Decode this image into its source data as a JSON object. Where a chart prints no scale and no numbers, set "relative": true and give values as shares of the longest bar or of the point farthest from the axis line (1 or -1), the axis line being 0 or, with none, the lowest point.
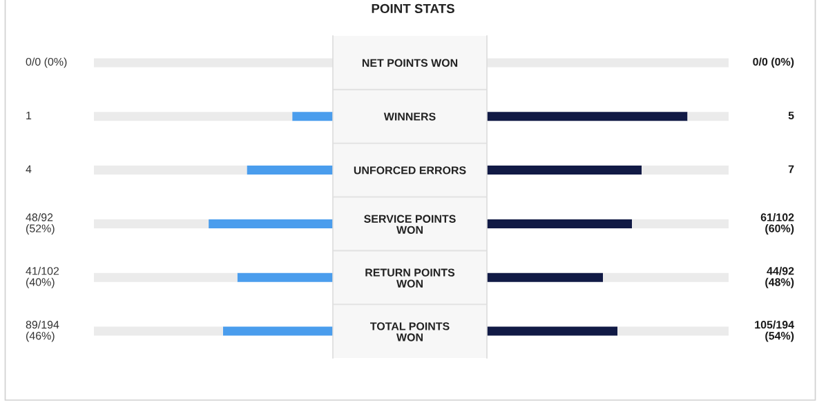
{
  "chart_data": [
    {
      "type": "bar",
      "orientation": "horizontal",
      "stacked": true,
      "relative": true,
      "title": "POINT STATS",
      "tick_labels": "y",
      "categories": [
        "NET POINTS WON",
        "WINNERS",
        "UNFORCED ERRORS",
        "SERVICE POINTS\nWON",
        "RETURN POINTS\nWON",
        "TOTAL POINTS\nWON"
      ],
      "series": [
        {
          "color": "#4a9ded",
          "values": [
            0,
            -0.17,
            -0.36,
            -0.52,
            -0.4,
            -0.46
          ]
        },
        {
          "color": "#ebebeb",
          "values": [
            -1,
            -0.83,
            -0.64,
            -0.48,
            -0.6,
            -0.54
          ]
        }
      ],
      "annotations": [
        "0/0 (0%)",
        "1",
        "4",
        "48/92\n(52%)",
        "41/102\n(40%)",
        "89/194\n(46%)"
      ]
    },
    {
      "type": "bar",
      "orientation": "horizontal",
      "stacked": true,
      "relative": true,
      "categories": [
        null,
        null,
        null,
        null,
        null,
        null
      ],
      "series": [
        {
          "color": "#111a45",
          "values": [
            0,
            0.83,
            0.64,
            0.6,
            0.48,
            0.54
          ]
        },
        {
          "color": "#ebebeb",
          "values": [
            1,
            0.17,
            0.36,
            0.4,
            0.52,
            0.46
          ]
        }
      ],
      "annotations": [
        "0/0 (0%)",
        "5",
        "7",
        "61/102\n(60%)",
        "44/92\n(48%)",
        "105/194\n(54%)"
      ]
    }
  ]
}
